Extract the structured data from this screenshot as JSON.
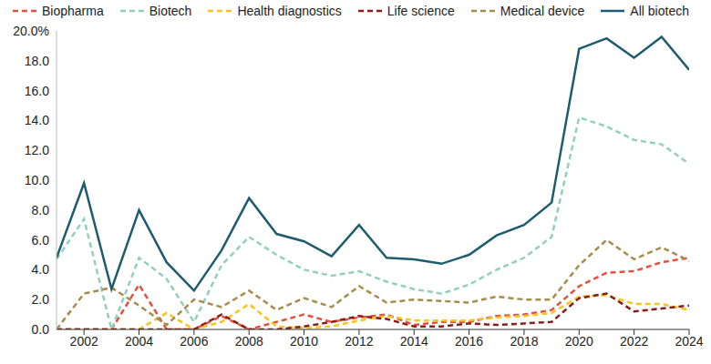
{
  "chart_data": {
    "type": "line",
    "x": [
      2001,
      2002,
      2003,
      2004,
      2005,
      2006,
      2007,
      2008,
      2009,
      2010,
      2011,
      2012,
      2013,
      2014,
      2015,
      2016,
      2017,
      2018,
      2019,
      2020,
      2021,
      2022,
      2023,
      2024
    ],
    "xlim": [
      2001,
      2024
    ],
    "xticks": [
      2002,
      2004,
      2006,
      2008,
      2010,
      2012,
      2014,
      2016,
      2018,
      2020,
      2022,
      2024
    ],
    "ylim": [
      0,
      20
    ],
    "yticks": [
      {
        "value": 0,
        "label": "0.0"
      },
      {
        "value": 2,
        "label": "2.0"
      },
      {
        "value": 4,
        "label": "4.0"
      },
      {
        "value": 6,
        "label": "6.0"
      },
      {
        "value": 8,
        "label": "8.0"
      },
      {
        "value": 10,
        "label": "10.0"
      },
      {
        "value": 12,
        "label": "12.0"
      },
      {
        "value": 14,
        "label": "14.0"
      },
      {
        "value": 16,
        "label": "16.0"
      },
      {
        "value": 18,
        "label": "18.0"
      },
      {
        "value": 20,
        "label": "20.0%"
      }
    ],
    "grid": false,
    "legend": "top",
    "series": [
      {
        "name": "Biopharma",
        "color": "#e5503d",
        "line_style": "dashed",
        "values": [
          0,
          0,
          0,
          3.0,
          0,
          0,
          0.9,
          0,
          0.5,
          1.0,
          0.5,
          0.8,
          1.0,
          0.3,
          0.5,
          0.5,
          0.9,
          1.0,
          1.3,
          2.9,
          3.8,
          3.9,
          4.5,
          4.8
        ]
      },
      {
        "name": "Biotech",
        "color": "#93d0bb",
        "line_style": "dashed",
        "values": [
          4.7,
          7.4,
          0.0,
          4.8,
          3.4,
          0.5,
          4.3,
          6.2,
          5.0,
          4.0,
          3.6,
          3.9,
          3.2,
          2.7,
          2.4,
          3.0,
          4.0,
          4.8,
          6.2,
          14.2,
          13.6,
          12.7,
          12.4,
          11.1
        ]
      },
      {
        "name": "Health diagnostics",
        "color": "#f5c51e",
        "line_style": "dashed",
        "values": [
          0,
          0,
          0,
          0,
          1.1,
          0,
          0.5,
          1.7,
          0.2,
          0.1,
          0.2,
          0.6,
          0.9,
          0.6,
          0.6,
          0.6,
          0.8,
          0.9,
          1.1,
          2.2,
          2.3,
          1.7,
          1.7,
          1.3
        ]
      },
      {
        "name": "Life science",
        "color": "#8c1c16",
        "line_style": "dashed",
        "values": [
          0,
          0,
          0,
          0,
          0,
          0,
          1.0,
          0,
          0,
          0.2,
          0.5,
          0.9,
          0.7,
          0.2,
          0.2,
          0.4,
          0.3,
          0.4,
          0.5,
          2.1,
          2.4,
          1.2,
          1.4,
          1.6
        ]
      },
      {
        "name": "Medical device",
        "color": "#a98b4b",
        "line_style": "dashed",
        "values": [
          0.0,
          2.4,
          2.8,
          1.6,
          0.3,
          2.0,
          1.5,
          2.6,
          1.3,
          2.1,
          1.5,
          2.9,
          1.8,
          2.0,
          1.9,
          1.8,
          2.2,
          2.0,
          2.0,
          4.3,
          6.0,
          4.7,
          5.5,
          4.6
        ]
      },
      {
        "name": "All biotech",
        "color": "#1d5c6e",
        "line_style": "solid",
        "values": [
          4.8,
          9.8,
          2.7,
          8.0,
          4.5,
          2.6,
          5.3,
          8.8,
          6.4,
          5.9,
          4.9,
          7.0,
          4.8,
          4.7,
          4.4,
          5.0,
          6.3,
          7.0,
          8.5,
          18.8,
          19.5,
          18.2,
          19.6,
          17.4
        ]
      }
    ]
  }
}
